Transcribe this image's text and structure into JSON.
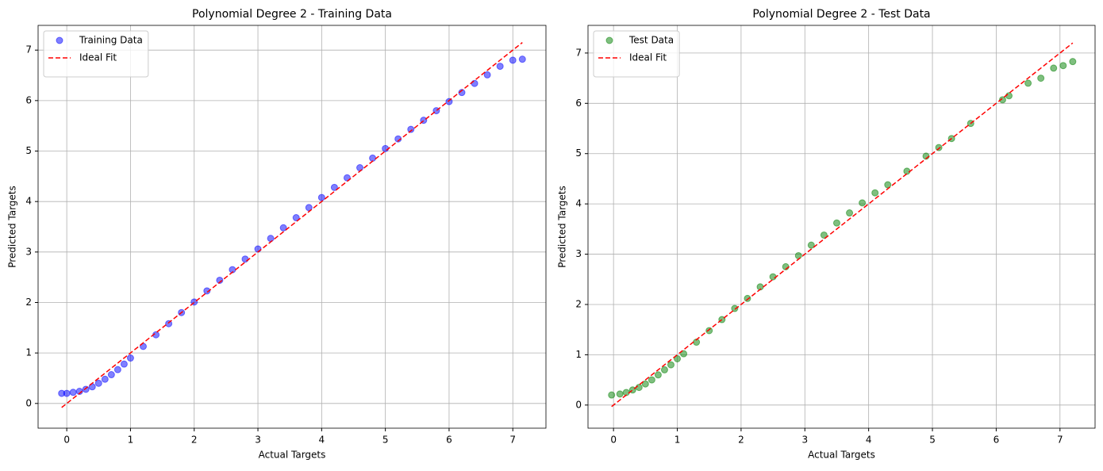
{
  "chart_data": [
    {
      "type": "scatter",
      "title": "Polynomial Degree 2 - Training Data",
      "xlabel": "Actual Targets",
      "ylabel": "Predicted Targets",
      "xlim": [
        -0.45,
        7.52
      ],
      "ylim": [
        -0.49,
        7.49
      ],
      "xticks": [
        0,
        1,
        2,
        3,
        4,
        5,
        6,
        7
      ],
      "yticks": [
        0,
        1,
        2,
        3,
        4,
        5,
        6,
        7
      ],
      "grid": true,
      "legend": "upper left",
      "alpha": 0.5,
      "series": [
        {
          "name": "Training Data",
          "type": "scatter",
          "color": "#0000ff",
          "x": [
            -0.08,
            0.0,
            0.1,
            0.2,
            0.3,
            0.4,
            0.5,
            0.6,
            0.7,
            0.8,
            0.9,
            1.0,
            1.2,
            1.4,
            1.6,
            1.8,
            2.0,
            2.2,
            2.4,
            2.6,
            2.8,
            3.0,
            3.2,
            3.4,
            3.6,
            3.8,
            4.0,
            4.2,
            4.4,
            4.6,
            4.8,
            5.0,
            5.2,
            5.4,
            5.6,
            5.8,
            6.0,
            6.2,
            6.4,
            6.6,
            6.8,
            7.0,
            7.15
          ],
          "values": [
            0.2,
            0.2,
            0.22,
            0.24,
            0.28,
            0.33,
            0.4,
            0.48,
            0.57,
            0.67,
            0.78,
            0.9,
            1.13,
            1.36,
            1.58,
            1.8,
            2.01,
            2.23,
            2.44,
            2.65,
            2.86,
            3.06,
            3.27,
            3.48,
            3.68,
            3.88,
            4.08,
            4.28,
            4.47,
            4.67,
            4.86,
            5.05,
            5.24,
            5.43,
            5.61,
            5.8,
            5.98,
            6.16,
            6.34,
            6.51,
            6.68,
            6.8,
            6.82
          ]
        },
        {
          "name": "Ideal Fit",
          "type": "line",
          "color": "#ff0000",
          "dashed": true,
          "x": [
            -0.08,
            7.15
          ],
          "values": [
            -0.08,
            7.15
          ]
        }
      ]
    },
    {
      "type": "scatter",
      "title": "Polynomial Degree 2 - Test Data",
      "xlabel": "Actual Targets",
      "ylabel": "Predicted Targets",
      "xlim": [
        -0.4,
        7.55
      ],
      "ylim": [
        -0.46,
        7.55
      ],
      "xticks": [
        0,
        1,
        2,
        3,
        4,
        5,
        6,
        7
      ],
      "yticks": [
        0,
        1,
        2,
        3,
        4,
        5,
        6,
        7
      ],
      "grid": true,
      "legend": "upper left",
      "alpha": 0.5,
      "series": [
        {
          "name": "Test Data",
          "type": "scatter",
          "color": "#008000",
          "x": [
            -0.03,
            0.1,
            0.2,
            0.3,
            0.4,
            0.5,
            0.6,
            0.7,
            0.8,
            0.9,
            1.0,
            1.1,
            1.3,
            1.5,
            1.7,
            1.9,
            2.1,
            2.3,
            2.5,
            2.7,
            2.9,
            3.1,
            3.3,
            3.5,
            3.7,
            3.9,
            4.1,
            4.3,
            4.6,
            4.9,
            5.1,
            5.3,
            5.6,
            6.1,
            6.2,
            6.5,
            6.7,
            6.9,
            7.05,
            7.2
          ],
          "values": [
            0.2,
            0.22,
            0.25,
            0.3,
            0.35,
            0.42,
            0.5,
            0.6,
            0.7,
            0.8,
            0.92,
            1.02,
            1.25,
            1.48,
            1.7,
            1.92,
            2.12,
            2.35,
            2.55,
            2.75,
            2.97,
            3.18,
            3.38,
            3.62,
            3.82,
            4.02,
            4.22,
            4.38,
            4.65,
            4.95,
            5.12,
            5.3,
            5.6,
            6.07,
            6.15,
            6.4,
            6.5,
            6.7,
            6.75,
            6.83
          ]
        },
        {
          "name": "Ideal Fit",
          "type": "line",
          "color": "#ff0000",
          "dashed": true,
          "x": [
            -0.03,
            7.2
          ],
          "values": [
            -0.03,
            7.2
          ]
        }
      ]
    }
  ]
}
